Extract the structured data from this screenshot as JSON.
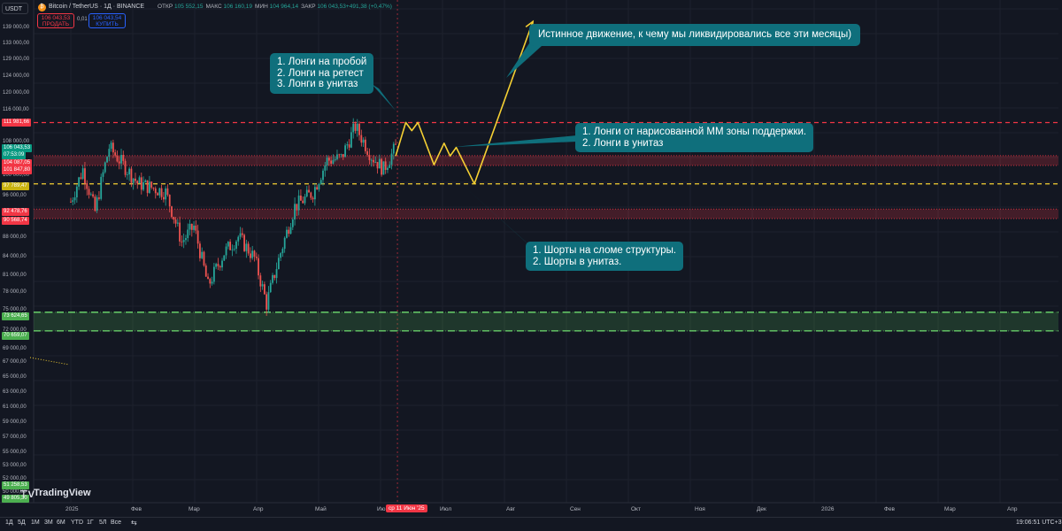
{
  "header": {
    "symbol_select": "USDT",
    "coin_glyph": "₿",
    "title": "Bitcoin / TetherUS · 1Д · BINANCE",
    "ohlc": [
      {
        "key": "ОТКР",
        "val": "105 552,15"
      },
      {
        "key": "МАКС",
        "val": "106 160,19"
      },
      {
        "key": "МИН",
        "val": "104 964,14"
      },
      {
        "key": "ЗАКР",
        "val": "106 043,53"
      },
      {
        "key": "",
        "val": "+491,38 (+0,47%)"
      }
    ],
    "sell_price": "106 043,53",
    "sell_label": "ПРОДАТЬ",
    "spread": "0,01",
    "buy_price": "106 043,54",
    "buy_label": "КУПИТЬ"
  },
  "price_axis": {
    "labels": [
      "139 000,00",
      "133 000,00",
      "129 000,00",
      "124 000,00",
      "120 000,00",
      "116 000,00",
      "108 000,00",
      "100 000,00",
      "96 000,00",
      "88 000,00",
      "84 000,00",
      "81 000,00",
      "78 000,00",
      "75 000,00",
      "72 000,00",
      "69 000,00",
      "67 000,00",
      "65 000,00",
      "63 000,00",
      "61 000,00",
      "59 000,00",
      "57 000,00",
      "55 000,00",
      "53 000,00",
      "52 000,00",
      "50 000,00",
      "48 000,00"
    ],
    "badges": [
      {
        "text": "111 981,66",
        "color": "#f23645"
      },
      {
        "text": "106 043,53",
        "color": "#089981"
      },
      {
        "text": "07:53:09",
        "color": "#089981"
      },
      {
        "text": "104 087,05",
        "color": "#f23645"
      },
      {
        "text": "101 847,80",
        "color": "#f23645"
      },
      {
        "text": "97 789,47",
        "color": "#c9b310"
      },
      {
        "text": "92 478,76",
        "color": "#f23645"
      },
      {
        "text": "90 568,74",
        "color": "#f23645"
      },
      {
        "text": "73 624,65",
        "color": "#4caf50"
      },
      {
        "text": "70 659,07",
        "color": "#4caf50"
      },
      {
        "text": "51 258,53",
        "color": "#4caf50"
      },
      {
        "text": "49 805,30",
        "color": "#4caf50"
      }
    ]
  },
  "notes": {
    "longs_breakout": [
      "1. Лонги на пробой",
      "2. Лонги на ретест",
      "3. Лонги в унитаз"
    ],
    "true_move": [
      "Истинное движение, к чему мы ликвидировались все эти месяцы)"
    ],
    "longs_mm": [
      "1. Лонги от нарисованной ММ зоны поддержки.",
      "2. Лонги в унитаз"
    ],
    "shorts": [
      "1. Шорты на сломе структуры.",
      "2. Шорты в унитаз."
    ]
  },
  "time_axis": {
    "months": [
      "2025",
      "Фев",
      "Мар",
      "Апр",
      "Май",
      "Ию",
      "Июл",
      "Авг",
      "Сен",
      "Окт",
      "Ноя",
      "Дек",
      "2026",
      "Фев",
      "Мар",
      "Апр"
    ],
    "current_date": "ср 11 Июн '25"
  },
  "toolbar": {
    "timeframes": [
      "1Д",
      "5Д",
      "1М",
      "3М",
      "6М",
      "YTD",
      "1Г",
      "5Л",
      "Все"
    ],
    "goto_glyph": "⇆",
    "clock": "19:06:51 UTC+3"
  },
  "branding": {
    "logo_text": "TradingView"
  },
  "colors": {
    "bg": "#131722",
    "up": "#26a69a",
    "down": "#ef5350",
    "resistance": "#f23645",
    "support": "#4caf50",
    "projection": "#f5d033",
    "annotation": "#0f6f7c"
  },
  "chart_data": {
    "type": "candlestick",
    "symbol": "Bitcoin / TetherUS",
    "interval": "1Д",
    "exchange": "BINANCE",
    "ohlc_last": {
      "open": 105552.15,
      "high": 106160.19,
      "low": 104964.14,
      "close": 106043.53,
      "change": 491.38,
      "change_pct": 0.47
    },
    "ylim": [
      48000,
      141000
    ],
    "price_path": [
      [
        "2025-01-01",
        94000
      ],
      [
        "2025-01-07",
        101000
      ],
      [
        "2025-01-13",
        92000
      ],
      [
        "2025-01-20",
        106000
      ],
      [
        "2025-01-27",
        102000
      ],
      [
        "2025-02-03",
        98000
      ],
      [
        "2025-02-10",
        97000
      ],
      [
        "2025-02-17",
        96000
      ],
      [
        "2025-02-25",
        86000
      ],
      [
        "2025-03-03",
        89000
      ],
      [
        "2025-03-10",
        78000
      ],
      [
        "2025-03-18",
        84000
      ],
      [
        "2025-03-25",
        87000
      ],
      [
        "2025-04-02",
        83000
      ],
      [
        "2025-04-08",
        75000
      ],
      [
        "2025-04-15",
        84000
      ],
      [
        "2025-04-22",
        93000
      ],
      [
        "2025-05-01",
        96000
      ],
      [
        "2025-05-08",
        103000
      ],
      [
        "2025-05-15",
        103500
      ],
      [
        "2025-05-22",
        111000
      ],
      [
        "2025-05-30",
        104000
      ],
      [
        "2025-06-05",
        101000
      ],
      [
        "2025-06-11",
        106000
      ]
    ],
    "levels": [
      {
        "price": 111981.66,
        "style": "dashed",
        "color": "#f23645"
      },
      {
        "range": [
          101847.8,
          104087.05
        ],
        "color": "#f23645"
      },
      {
        "price": 97789.47,
        "style": "dashed",
        "color": "#f5d033"
      },
      {
        "range": [
          90568.74,
          92478.76
        ],
        "color": "#f23645"
      },
      {
        "range": [
          70659.07,
          73624.65
        ],
        "color": "#4caf50"
      }
    ],
    "projection": [
      [
        "2025-06-11",
        104000
      ],
      [
        "2025-06-16",
        112000
      ],
      [
        "2025-06-19",
        110000
      ],
      [
        "2025-06-22",
        112000
      ],
      [
        "2025-06-30",
        102000
      ],
      [
        "2025-07-05",
        107000
      ],
      [
        "2025-07-08",
        104000
      ],
      [
        "2025-07-11",
        106000
      ],
      [
        "2025-07-20",
        97800
      ],
      [
        "2025-08-18",
        140000
      ]
    ]
  }
}
